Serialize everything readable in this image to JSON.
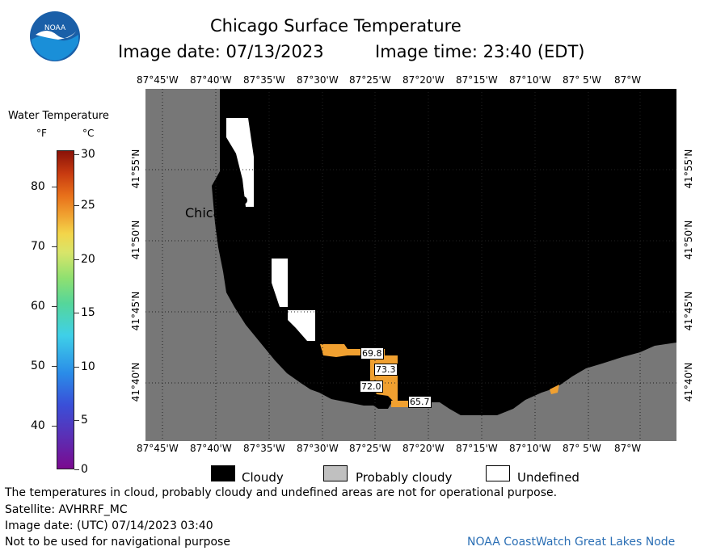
{
  "title": "Chicago Surface Temperature",
  "image_date_label": "Image date: 07/13/2023",
  "image_time_label": "Image time: 23:40 (EDT)",
  "colorbar": {
    "title": "Water Temperature",
    "unit_f": "°F",
    "unit_c": "°C",
    "f_ticks": [
      "80",
      "70",
      "60",
      "50",
      "40"
    ],
    "c_ticks": [
      "30",
      "25",
      "20",
      "15",
      "10",
      "5",
      "0"
    ]
  },
  "lon_ticks": [
    "87°45'W",
    "87°40'W",
    "87°35'W",
    "87°30'W",
    "87°25'W",
    "87°20'W",
    "87°15'W",
    "87°10'W",
    "87° 5'W",
    "87°W"
  ],
  "lat_ticks": [
    "41°55'N",
    "41°50'N",
    "41°45'N",
    "41°40'N"
  ],
  "city_label": "Chicago",
  "temp_labels": [
    "69.8",
    "73.3",
    "72.0",
    "65.7"
  ],
  "legend": {
    "cloudy": "Cloudy",
    "probably_cloudy": "Probably cloudy",
    "undefined": "Undefined"
  },
  "notes": {
    "line1": "The temperatures in cloud, probably cloudy and undefined areas are not for operational purpose.",
    "line2": "Satellite: AVHRRF_MC",
    "line3": "Image date: (UTC) 07/14/2023  03:40",
    "line4": "Not to be used for navigational purpose"
  },
  "credit": "NOAA CoastWatch Great Lakes Node",
  "logo_text": "NOAA",
  "colors": {
    "land": "#777777",
    "cloud": "#000000",
    "undefined": "#ffffff",
    "probably_cloudy": "#c0c0c0",
    "warm_water": "#f0a030",
    "credit": "#2b6fb5"
  }
}
